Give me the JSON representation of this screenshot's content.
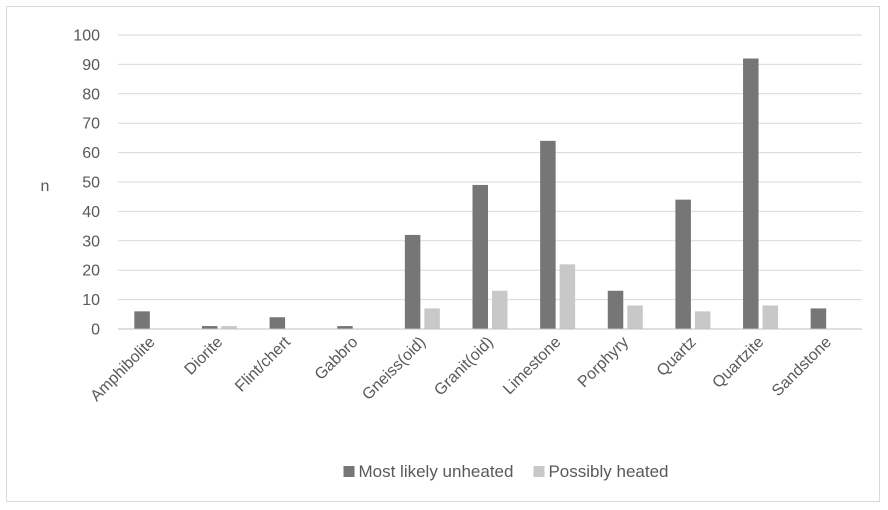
{
  "chart_data": {
    "type": "bar",
    "title": "",
    "xlabel": "",
    "ylabel": "n",
    "ylim": [
      0,
      100
    ],
    "yticks": [
      0,
      10,
      20,
      30,
      40,
      50,
      60,
      70,
      80,
      90,
      100
    ],
    "grid": true,
    "legend_position": "bottom",
    "categories": [
      "Amphibolite",
      "Diorite",
      "Flint/chert",
      "Gabbro",
      "Gneiss(oid)",
      "Granit(oid)",
      "Limestone",
      "Porphyry",
      "Quartz",
      "Quartzite",
      "Sandstone"
    ],
    "series": [
      {
        "name": "Most likely unheated",
        "color": "#767676",
        "values": [
          6,
          1,
          4,
          1,
          32,
          49,
          64,
          13,
          44,
          92,
          7
        ]
      },
      {
        "name": "Possibly heated",
        "color": "#c8c8c8",
        "values": [
          0,
          1,
          0,
          0,
          7,
          13,
          22,
          8,
          6,
          8,
          0
        ]
      }
    ]
  }
}
